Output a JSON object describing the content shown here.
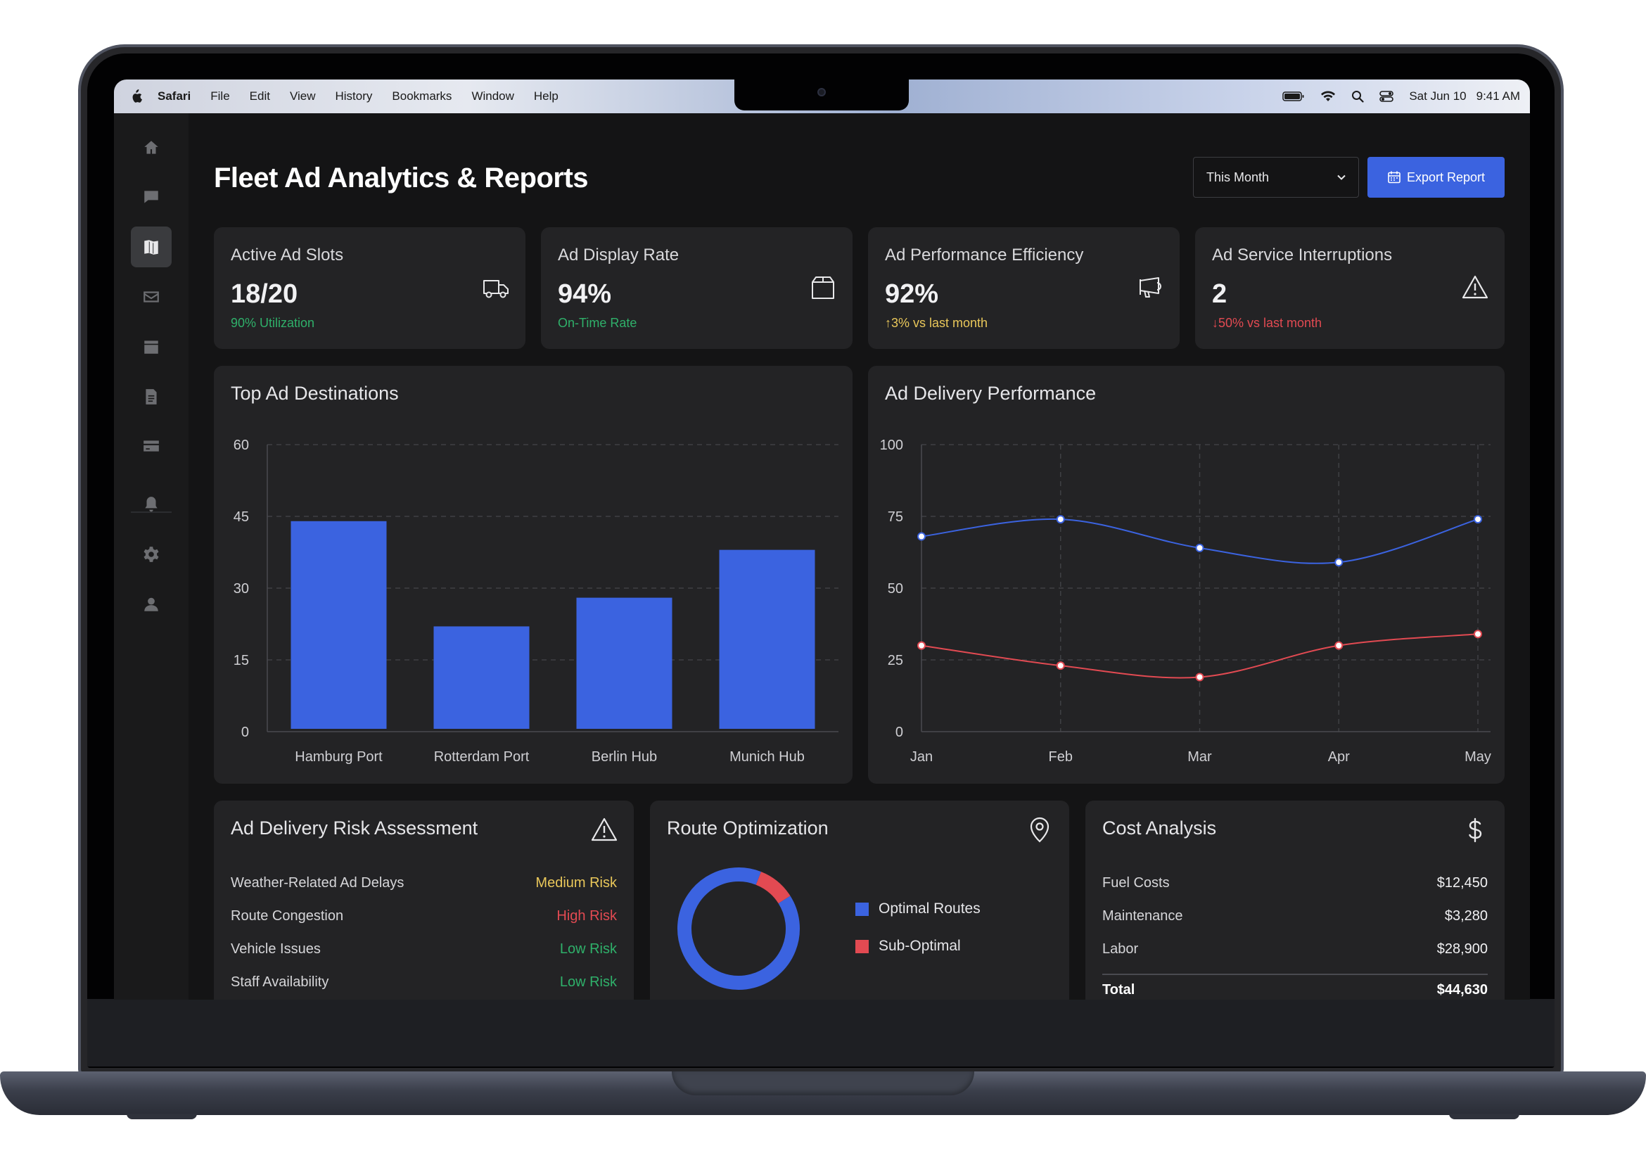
{
  "menubar": {
    "app": "Safari",
    "items": [
      "File",
      "Edit",
      "View",
      "History",
      "Bookmarks",
      "Window",
      "Help"
    ],
    "date": "Sat Jun 10",
    "time": "9:41 AM"
  },
  "header": {
    "title": "Fleet Ad Analytics & Reports",
    "period_select": "This Month",
    "export_label": "Export Report"
  },
  "sidebar": {
    "icons": [
      "home-icon",
      "chat-icon",
      "map-icon",
      "mail-icon",
      "calendar-icon",
      "document-icon",
      "card-icon",
      "bell-icon",
      "gear-icon",
      "user-icon"
    ],
    "active": "map-icon"
  },
  "stats": [
    {
      "label": "Active Ad Slots",
      "value": "18/20",
      "sub": "90% Utilization",
      "tone": "green",
      "icon": "truck-icon"
    },
    {
      "label": "Ad Display Rate",
      "value": "94%",
      "sub": "On-Time Rate",
      "tone": "green",
      "icon": "box-icon"
    },
    {
      "label": "Ad Performance Efficiency",
      "value": "92%",
      "sub": "↑3% vs last month",
      "tone": "yellow",
      "icon": "megaphone-icon"
    },
    {
      "label": "Ad Service Interruptions",
      "value": "2",
      "sub": "↓50% vs last month",
      "tone": "red",
      "icon": "warning-icon"
    }
  ],
  "destinations": {
    "title": "Top Ad Destinations",
    "chart_data": {
      "type": "bar",
      "categories": [
        "Hamburg Port",
        "Rotterdam Port",
        "Berlin Hub",
        "Munich Hub"
      ],
      "values": [
        44,
        22,
        28,
        38
      ],
      "ylim": [
        0,
        60
      ],
      "yticks": [
        0,
        15,
        30,
        45,
        60
      ],
      "color": "#3b63e0",
      "grid": true
    }
  },
  "delivery": {
    "title": "Ad Delivery Performance",
    "chart_data": {
      "type": "line",
      "x": [
        "Jan",
        "Feb",
        "Mar",
        "Apr",
        "May"
      ],
      "series": [
        {
          "values": [
            68,
            74,
            64,
            59,
            74
          ],
          "color": "#3b63e0"
        },
        {
          "values": [
            30,
            23,
            19,
            30,
            34
          ],
          "color": "#e24a52"
        }
      ],
      "ylim": [
        0,
        100
      ],
      "yticks": [
        0,
        25,
        50,
        75,
        100
      ],
      "grid": true
    }
  },
  "risk": {
    "title": "Ad Delivery Risk Assessment",
    "rows": [
      {
        "label": "Weather-Related Ad Delays",
        "value": "Medium Risk",
        "tone": "yellow"
      },
      {
        "label": "Route Congestion",
        "value": "High Risk",
        "tone": "red"
      },
      {
        "label": "Vehicle Issues",
        "value": "Low Risk",
        "tone": "green"
      },
      {
        "label": "Staff Availability",
        "value": "Low Risk",
        "tone": "green"
      }
    ]
  },
  "routes": {
    "title": "Route Optimization",
    "chart_data": {
      "type": "pie",
      "categories": [
        "Optimal Routes",
        "Sub-Optimal"
      ],
      "values": [
        90,
        10
      ],
      "colors": [
        "#3b63e0",
        "#e24a52"
      ]
    }
  },
  "cost": {
    "title": "Cost Analysis",
    "rows": [
      {
        "label": "Fuel Costs",
        "value": "$12,450"
      },
      {
        "label": "Maintenance",
        "value": "$3,280"
      },
      {
        "label": "Labor",
        "value": "$28,900"
      }
    ],
    "total_label": "Total",
    "total_value": "$44,630"
  }
}
